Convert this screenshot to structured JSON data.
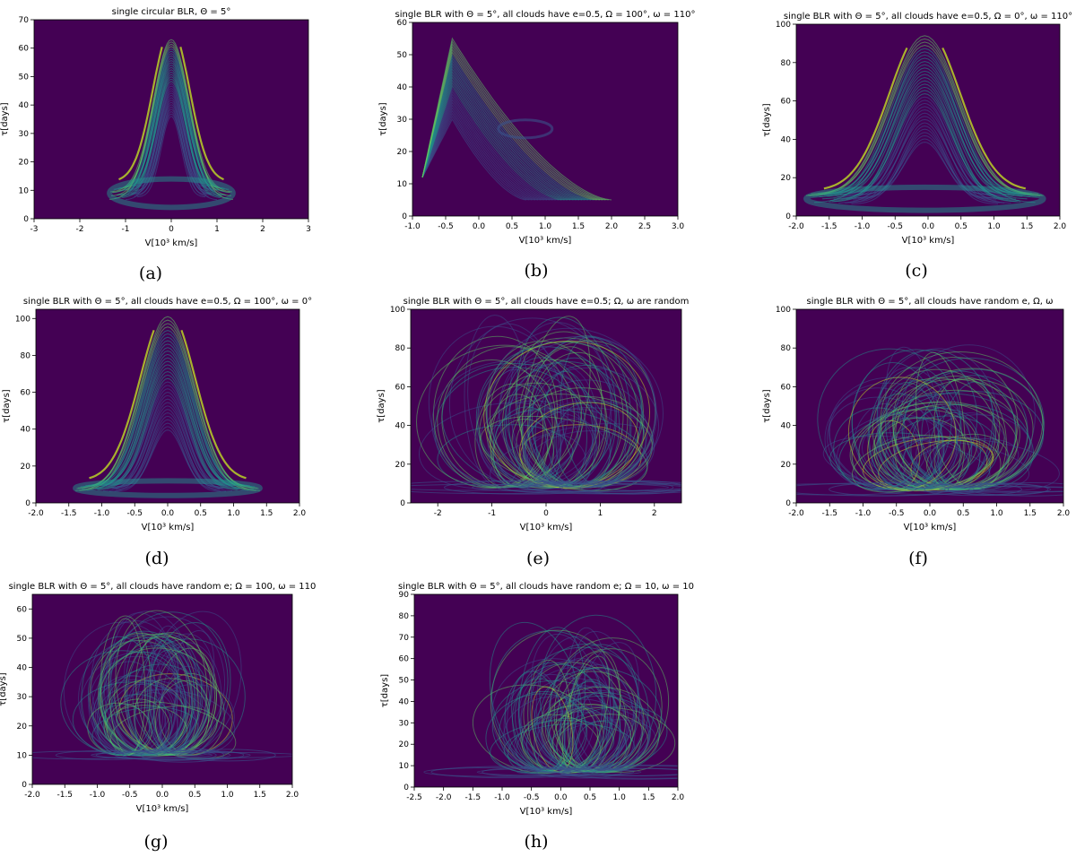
{
  "colors": {
    "background": "#440154",
    "low": "#3b528b",
    "mid": "#21918c",
    "high": "#5ec962",
    "peak": "#c2df23",
    "axis": "#000000"
  },
  "chart_data": [
    {
      "id": "a",
      "caption": "(a)",
      "type": "heatmap",
      "title": "single circular BLR, Θ = 5°",
      "xlabel": "V[10³ km/s]",
      "ylabel": "τ[days]",
      "xlim": [
        -3,
        3
      ],
      "ylim": [
        0,
        70
      ],
      "xticks": [
        "-3",
        "-2",
        "-1",
        "0",
        "1",
        "2",
        "3"
      ],
      "xtick_values": [
        -3,
        -2,
        -1,
        0,
        1,
        2,
        3
      ],
      "yticks": [
        "0",
        "10",
        "20",
        "30",
        "40",
        "50",
        "60",
        "70"
      ],
      "ytick_values": [
        0,
        10,
        20,
        30,
        40,
        50,
        60,
        70
      ],
      "pattern": {
        "kind": "bell",
        "center": 0.0,
        "half_width": 1.35,
        "peak": 63,
        "base": 9,
        "base_spread": 5,
        "inner_dip": 27,
        "inner_half_width": 0.55
      }
    },
    {
      "id": "b",
      "caption": "(b)",
      "type": "heatmap",
      "title": "single BLR with Θ = 5°, all clouds have e=0.5, Ω = 100°, ω = 110°",
      "xlabel": "V[10³ km/s]",
      "ylabel": "τ[days]",
      "xlim": [
        -1.0,
        3.0
      ],
      "ylim": [
        0,
        60
      ],
      "xticks": [
        "-1.0",
        "-0.5",
        "0.0",
        "0.5",
        "1.0",
        "1.5",
        "2.0",
        "2.5",
        "3.0"
      ],
      "xtick_values": [
        -1.0,
        -0.5,
        0.0,
        0.5,
        1.0,
        1.5,
        2.0,
        2.5,
        3.0
      ],
      "yticks": [
        "0",
        "10",
        "20",
        "30",
        "40",
        "50",
        "60"
      ],
      "ytick_values": [
        0,
        10,
        20,
        30,
        40,
        50,
        60
      ],
      "pattern": {
        "kind": "skew",
        "left": -0.85,
        "peak_x": -0.4,
        "peak": 55,
        "right": 2.0,
        "base": 5,
        "inner_x": 0.8,
        "inner_y": 25
      }
    },
    {
      "id": "c",
      "caption": "(c)",
      "type": "heatmap",
      "title": "single BLR with Θ = 5°, all clouds have e=0.5, Ω = 0°, ω = 110°",
      "xlabel": "V[10³ km/s]",
      "ylabel": "τ[days]",
      "xlim": [
        -2.0,
        2.0
      ],
      "ylim": [
        0,
        100
      ],
      "xticks": [
        "-2.0",
        "-1.5",
        "-1.0",
        "-0.5",
        "0.0",
        "0.5",
        "1.0",
        "1.5",
        "2.0"
      ],
      "xtick_values": [
        -2.0,
        -1.5,
        -1.0,
        -0.5,
        0.0,
        0.5,
        1.0,
        1.5,
        2.0
      ],
      "yticks": [
        "0",
        "20",
        "40",
        "60",
        "80",
        "100"
      ],
      "ytick_values": [
        0,
        20,
        40,
        60,
        80,
        100
      ],
      "pattern": {
        "kind": "bell",
        "center": -0.05,
        "half_width": 1.8,
        "peak": 94,
        "base": 9,
        "base_spread": 6,
        "inner_dip": 20,
        "inner_half_width": 0.7
      }
    },
    {
      "id": "d",
      "caption": "(d)",
      "type": "heatmap",
      "title": "single BLR with Θ = 5°, all clouds have e=0.5, Ω = 100°, ω = 0°",
      "xlabel": "V[10³ km/s]",
      "ylabel": "τ[days]",
      "xlim": [
        -2.0,
        2.0
      ],
      "ylim": [
        0,
        105
      ],
      "xticks": [
        "-2.0",
        "-1.5",
        "-1.0",
        "-0.5",
        "0.0",
        "0.5",
        "1.0",
        "1.5",
        "2.0"
      ],
      "xtick_values": [
        -2.0,
        -1.5,
        -1.0,
        -0.5,
        0.0,
        0.5,
        1.0,
        1.5,
        2.0
      ],
      "yticks": [
        "0",
        "20",
        "40",
        "60",
        "80",
        "100"
      ],
      "ytick_values": [
        0,
        20,
        40,
        60,
        80,
        100
      ],
      "pattern": {
        "kind": "bell",
        "center": 0.0,
        "half_width": 1.4,
        "peak": 101,
        "base": 8,
        "base_spread": 4,
        "inner_dip": 19,
        "inner_half_width": 0.7
      }
    },
    {
      "id": "e",
      "caption": "(e)",
      "type": "heatmap",
      "title": "single BLR with Θ = 5°, all clouds have e=0.5; Ω, ω are random",
      "xlabel": "V[10³ km/s]",
      "ylabel": "τ[days]",
      "xlim": [
        -2.5,
        2.5
      ],
      "ylim": [
        0,
        100
      ],
      "xticks": [
        "-2",
        "-1",
        "0",
        "1",
        "2"
      ],
      "xtick_values": [
        -2,
        -1,
        0,
        1,
        2
      ],
      "yticks": [
        "0",
        "20",
        "40",
        "60",
        "80",
        "100"
      ],
      "ytick_values": [
        0,
        20,
        40,
        60,
        80,
        100
      ],
      "pattern": {
        "kind": "random",
        "center": 0.0,
        "half_width": 2.1,
        "peak": 98,
        "base": 8,
        "seed": 5
      }
    },
    {
      "id": "f",
      "caption": "(f)",
      "type": "heatmap",
      "title": "single BLR with Θ = 5°, all clouds have random e, Ω, ω",
      "xlabel": "V[10³ km/s]",
      "ylabel": "τ[days]",
      "xlim": [
        -2.0,
        2.0
      ],
      "ylim": [
        0,
        100
      ],
      "xticks": [
        "-2.0",
        "-1.5",
        "-1.0",
        "-0.5",
        "0.0",
        "0.5",
        "1.0",
        "1.5",
        "2.0"
      ],
      "xtick_values": [
        -2.0,
        -1.5,
        -1.0,
        -0.5,
        0.0,
        0.5,
        1.0,
        1.5,
        2.0
      ],
      "yticks": [
        "0",
        "20",
        "40",
        "60",
        "80",
        "100"
      ],
      "ytick_values": [
        0,
        20,
        40,
        60,
        80,
        100
      ],
      "pattern": {
        "kind": "random",
        "center": -0.05,
        "half_width": 1.7,
        "peak": 83,
        "base": 7,
        "seed": 11
      }
    },
    {
      "id": "g",
      "caption": "(g)",
      "type": "heatmap",
      "title": "single BLR with Θ = 5°, all clouds have random e; Ω = 100, ω = 110",
      "xlabel": "V[10³ km/s]",
      "ylabel": "τ[days]",
      "xlim": [
        -2.0,
        2.0
      ],
      "ylim": [
        0,
        65
      ],
      "xticks": [
        "-2.0",
        "-1.5",
        "-1.0",
        "-0.5",
        "0.0",
        "0.5",
        "1.0",
        "1.5",
        "2.0"
      ],
      "xtick_values": [
        -2.0,
        -1.5,
        -1.0,
        -0.5,
        0.0,
        0.5,
        1.0,
        1.5,
        2.0
      ],
      "yticks": [
        "0",
        "10",
        "20",
        "30",
        "40",
        "50",
        "60"
      ],
      "ytick_values": [
        0,
        10,
        20,
        30,
        40,
        50,
        60
      ],
      "pattern": {
        "kind": "random",
        "center": -0.1,
        "half_width": 1.3,
        "peak": 61,
        "base": 10,
        "seed": 23
      }
    },
    {
      "id": "h",
      "caption": "(h)",
      "type": "heatmap",
      "title": "single BLR with Θ = 5°, all clouds have random e; Ω = 10, ω = 10",
      "xlabel": "V[10³ km/s]",
      "ylabel": "τ[days]",
      "xlim": [
        -2.5,
        2.0
      ],
      "ylim": [
        0,
        90
      ],
      "xticks": [
        "-2.5",
        "-2.0",
        "-1.5",
        "-1.0",
        "-0.5",
        "0.0",
        "0.5",
        "1.0",
        "1.5",
        "2.0"
      ],
      "xtick_values": [
        -2.5,
        -2.0,
        -1.5,
        -1.0,
        -0.5,
        0.0,
        0.5,
        1.0,
        1.5,
        2.0
      ],
      "yticks": [
        "0",
        "10",
        "20",
        "30",
        "40",
        "50",
        "60",
        "70",
        "80",
        "90"
      ],
      "ytick_values": [
        0,
        10,
        20,
        30,
        40,
        50,
        60,
        70,
        80,
        90
      ],
      "pattern": {
        "kind": "random",
        "center": 0.2,
        "half_width": 1.5,
        "peak": 81,
        "base": 7,
        "seed": 37
      }
    }
  ]
}
